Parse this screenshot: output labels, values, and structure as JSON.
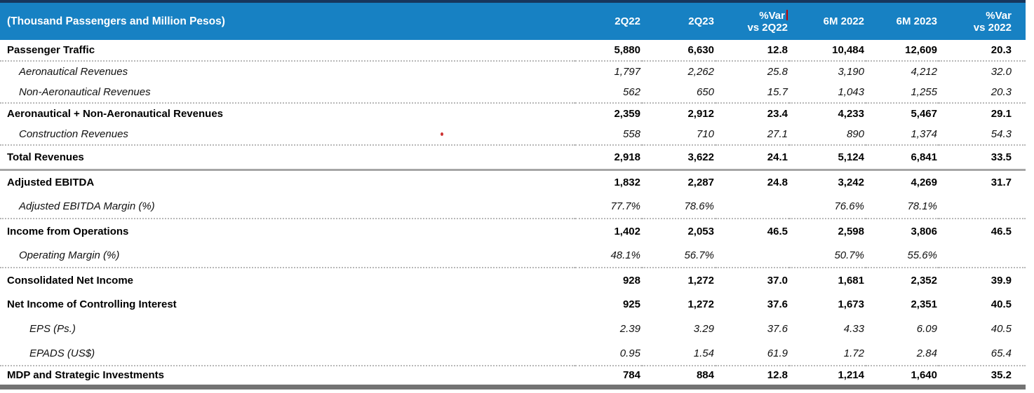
{
  "colors": {
    "header_bg": "#1781c3",
    "header_text": "#ffffff",
    "top_border": "#17365d",
    "body_text": "#111111",
    "dotted_line": "#b8b8b8",
    "solid_line": "#a6a6a6",
    "bottom_bar": "#737373",
    "artifact_red": "#c00000",
    "page_bg": "#ffffff"
  },
  "table": {
    "title": "(Thousand Passengers and Million Pesos)",
    "columns": [
      {
        "l1": "2Q22",
        "l2": ""
      },
      {
        "l1": "2Q23",
        "l2": ""
      },
      {
        "l1": "%Var",
        "l2": "vs 2Q22"
      },
      {
        "l1": "6M 2022",
        "l2": ""
      },
      {
        "l1": "6M 2023",
        "l2": ""
      },
      {
        "l1": "%Var",
        "l2": "vs 2022"
      }
    ],
    "rows": [
      {
        "label": "Passenger Traffic",
        "style": "bold",
        "indent": 0,
        "sep": "dotted",
        "values": [
          "5,880",
          "6,630",
          "12.8",
          "10,484",
          "12,609",
          "20.3"
        ]
      },
      {
        "label": "Aeronautical Revenues",
        "style": "italic",
        "indent": 1,
        "sep": "none",
        "values": [
          "1,797",
          "2,262",
          "25.8",
          "3,190",
          "4,212",
          "32.0"
        ]
      },
      {
        "label": "Non-Aeronautical Revenues",
        "style": "italic",
        "indent": 1,
        "sep": "dotted",
        "values": [
          "562",
          "650",
          "15.7",
          "1,043",
          "1,255",
          "20.3"
        ]
      },
      {
        "label": "Aeronautical + Non-Aeronautical Revenues",
        "style": "bold",
        "indent": 0,
        "sep": "none",
        "values": [
          "2,359",
          "2,912",
          "23.4",
          "4,233",
          "5,467",
          "29.1"
        ]
      },
      {
        "label": "Construction Revenues",
        "style": "italic",
        "indent": 1,
        "sep": "dotted",
        "values": [
          "558",
          "710",
          "27.1",
          "890",
          "1,374",
          "54.3"
        ]
      },
      {
        "label": "Total Revenues",
        "style": "bold",
        "indent": 0,
        "sep": "solid",
        "values": [
          "2,918",
          "3,622",
          "24.1",
          "5,124",
          "6,841",
          "33.5"
        ]
      },
      {
        "label": "Adjusted EBITDA",
        "style": "bold",
        "indent": 0,
        "sep": "none",
        "values": [
          "1,832",
          "2,287",
          "24.8",
          "3,242",
          "4,269",
          "31.7"
        ]
      },
      {
        "label": "Adjusted EBITDA Margin (%)",
        "style": "italic",
        "indent": 1,
        "sep": "dotted",
        "values": [
          "77.7%",
          "78.6%",
          "",
          "76.6%",
          "78.1%",
          ""
        ]
      },
      {
        "label": "Income from Operations",
        "style": "bold",
        "indent": 0,
        "sep": "none",
        "values": [
          "1,402",
          "2,053",
          "46.5",
          "2,598",
          "3,806",
          "46.5"
        ]
      },
      {
        "label": "Operating Margin (%)",
        "style": "italic",
        "indent": 1,
        "sep": "dotted",
        "values": [
          "48.1%",
          "56.7%",
          "",
          "50.7%",
          "55.6%",
          ""
        ]
      },
      {
        "label": "Consolidated Net Income",
        "style": "bold",
        "indent": 0,
        "sep": "none",
        "values": [
          "928",
          "1,272",
          "37.0",
          "1,681",
          "2,352",
          "39.9"
        ]
      },
      {
        "label": "Net Income of Controlling Interest",
        "style": "bold",
        "indent": 0,
        "sep": "none",
        "values": [
          "925",
          "1,272",
          "37.6",
          "1,673",
          "2,351",
          "40.5"
        ]
      },
      {
        "label": "EPS (Ps.)",
        "style": "italic",
        "indent": 2,
        "sep": "none",
        "values": [
          "2.39",
          "3.29",
          "37.6",
          "4.33",
          "6.09",
          "40.5"
        ]
      },
      {
        "label": "EPADS (US$)",
        "style": "italic",
        "indent": 2,
        "sep": "dotted",
        "values": [
          "0.95",
          "1.54",
          "61.9",
          "1.72",
          "2.84",
          "65.4"
        ]
      },
      {
        "label": "MDP and Strategic Investments",
        "style": "bold",
        "indent": 0,
        "sep": "thick",
        "values": [
          "784",
          "884",
          "12.8",
          "1,214",
          "1,640",
          "35.2"
        ]
      }
    ]
  }
}
